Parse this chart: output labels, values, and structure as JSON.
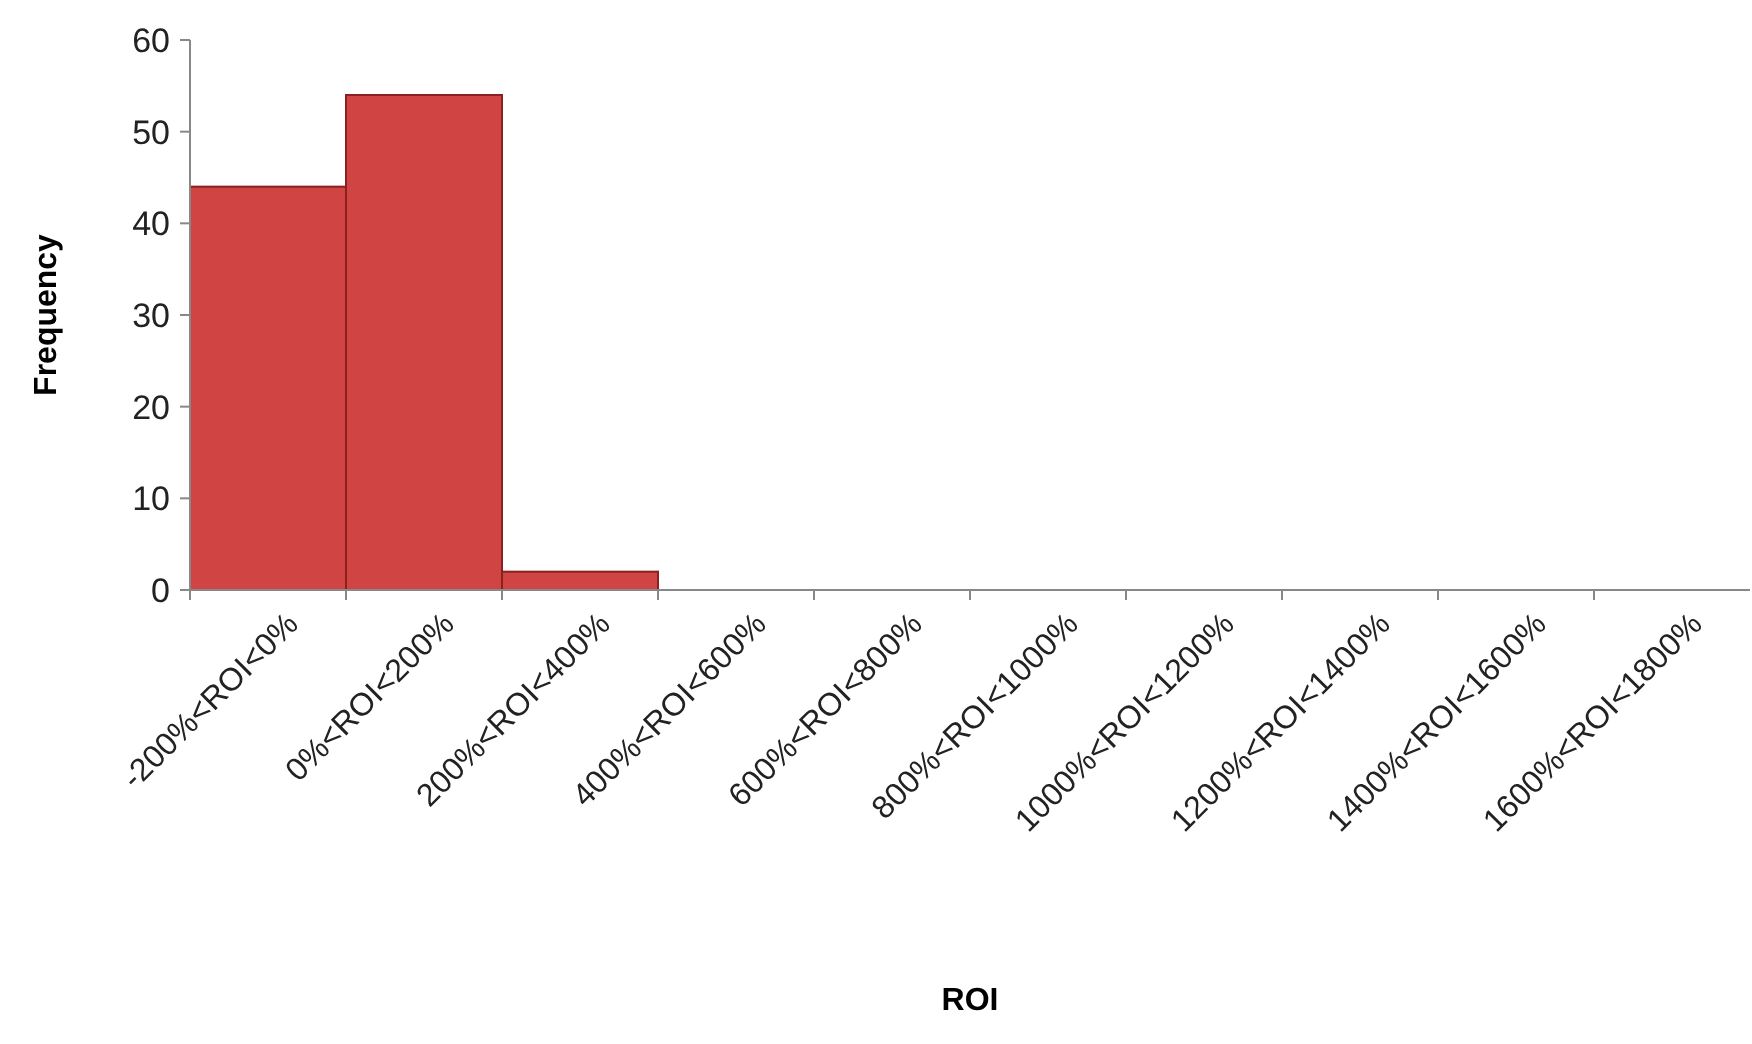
{
  "chart_data": {
    "type": "bar",
    "xlabel": "ROI",
    "ylabel": "Frequency",
    "categories": [
      "-200%<ROI<0%",
      "0%<ROI<200%",
      "200%<ROI<400%",
      "400%<ROI<600%",
      "600%<ROI<800%",
      "800%<ROI<1000%",
      "1000%<ROI<1200%",
      "1200%<ROI<1400%",
      "1400%<ROI<1600%",
      "1600%<ROI<1800%"
    ],
    "values": [
      44,
      54,
      2,
      0,
      0,
      0,
      0,
      0,
      0,
      0
    ],
    "color": "#d04444",
    "ylim": [
      0,
      60
    ],
    "yticks": [
      0,
      10,
      20,
      30,
      40,
      50,
      60
    ],
    "grid": false
  }
}
